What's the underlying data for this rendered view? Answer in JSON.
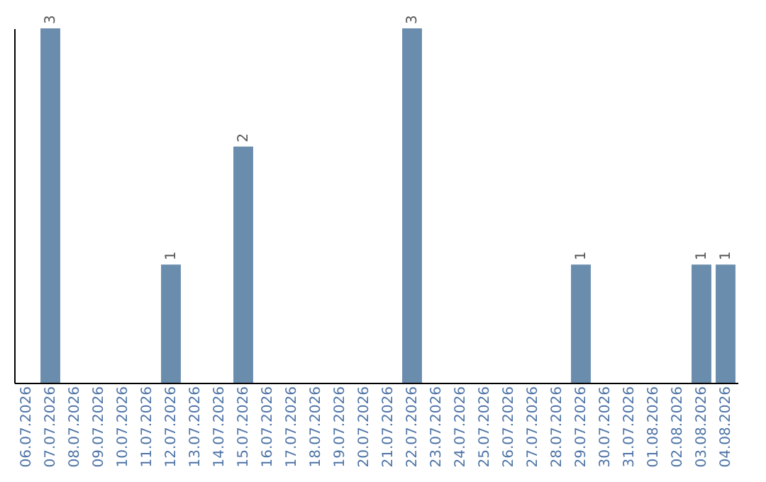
{
  "chart_data": {
    "type": "bar",
    "categories": [
      "06.07.2026",
      "07.07.2026",
      "08.07.2026",
      "09.07.2026",
      "10.07.2026",
      "11.07.2026",
      "12.07.2026",
      "13.07.2026",
      "14.07.2026",
      "15.07.2026",
      "16.07.2026",
      "17.07.2026",
      "18.07.2026",
      "19.07.2026",
      "20.07.2026",
      "21.07.2026",
      "22.07.2026",
      "23.07.2026",
      "24.07.2026",
      "25.07.2026",
      "26.07.2026",
      "27.07.2026",
      "28.07.2026",
      "29.07.2026",
      "30.07.2026",
      "31.07.2026",
      "01.08.2026",
      "02.08.2026",
      "03.08.2026",
      "04.08.2026"
    ],
    "values": [
      0,
      3,
      0,
      0,
      0,
      0,
      1,
      0,
      0,
      2,
      0,
      0,
      0,
      0,
      0,
      0,
      3,
      0,
      0,
      0,
      0,
      0,
      0,
      1,
      0,
      0,
      0,
      0,
      1,
      1
    ],
    "value_labels": [
      null,
      "3",
      null,
      null,
      null,
      null,
      "1",
      null,
      null,
      "2",
      null,
      null,
      null,
      null,
      null,
      null,
      "3",
      null,
      null,
      null,
      null,
      null,
      null,
      "1",
      null,
      null,
      null,
      null,
      "1",
      "1"
    ],
    "color": "#6a8cad",
    "tick_labels": "x",
    "grid": false
  }
}
